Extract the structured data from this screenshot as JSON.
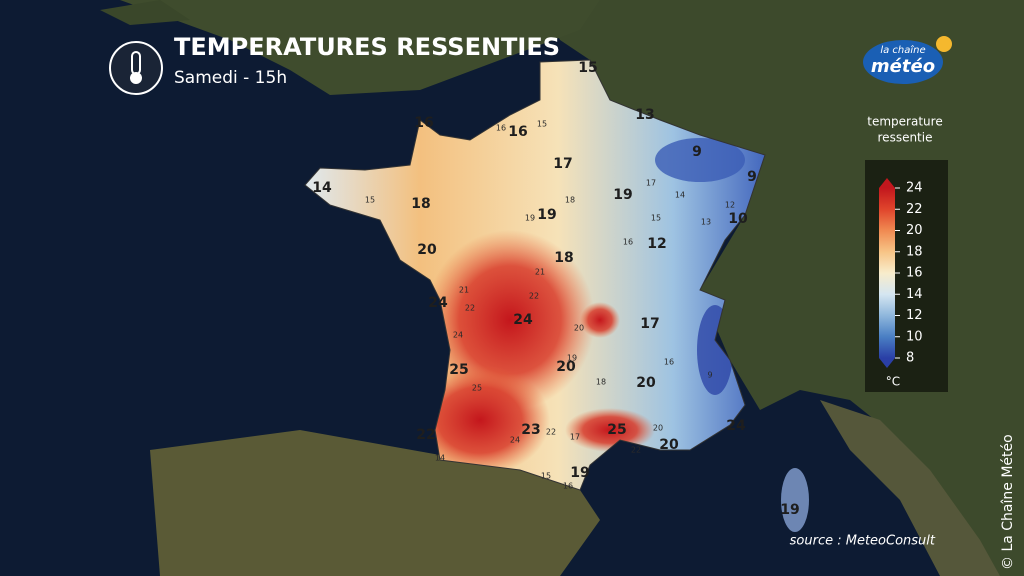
{
  "header": {
    "title": "TEMPERATURES RESSENTIES",
    "subtitle": "Samedi - 15h"
  },
  "logo": {
    "top": "la chaîne",
    "bottom": "météo"
  },
  "legend": {
    "title": [
      "temperature",
      "ressentie"
    ],
    "ticks": [
      24,
      22,
      20,
      18,
      16,
      14,
      12,
      10,
      8
    ],
    "colors": [
      "#c2171d",
      "#e0452c",
      "#f08a52",
      "#f7c486",
      "#f8eccb",
      "#d5e6f1",
      "#8fb7dc",
      "#4a7fc4",
      "#2a3fa6"
    ],
    "unit": "°C"
  },
  "labels": {
    "major": [
      15,
      13,
      16,
      16,
      9,
      9,
      17,
      14,
      18,
      19,
      19,
      10,
      12,
      20,
      18,
      24,
      24,
      17,
      25,
      20,
      20,
      22,
      23,
      25,
      20,
      24,
      19,
      19
    ],
    "minor": [
      15,
      16,
      15,
      19,
      18,
      17,
      14,
      15,
      13,
      12,
      16,
      21,
      22,
      21,
      22,
      24,
      20,
      19,
      18,
      16,
      9,
      25,
      22,
      17,
      20,
      22,
      24,
      15,
      16,
      14
    ]
  },
  "source": "source : MeteoConsult",
  "copyright": "© La Chaîne Météo"
}
